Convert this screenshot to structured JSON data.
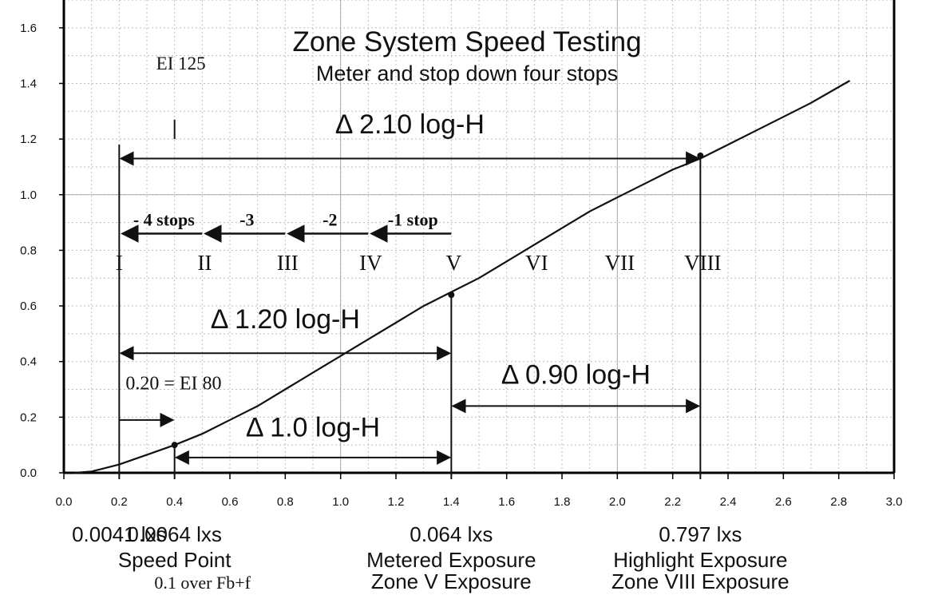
{
  "chart_data": {
    "type": "line",
    "title": "Zone System Speed Testing",
    "subtitle": "Meter and stop down four stops",
    "xlabel": "",
    "ylabel": "",
    "xlim": [
      0.0,
      3.0
    ],
    "ylim": [
      0.0,
      1.7
    ],
    "x_ticks": [
      0.0,
      0.2,
      0.4,
      0.6,
      0.8,
      1.0,
      1.2,
      1.4,
      1.6,
      1.8,
      2.0,
      2.2,
      2.4,
      2.6,
      2.8,
      3.0
    ],
    "x_tick_labels": [
      "0.0",
      "0.2",
      "0.4",
      "0.6",
      "0.8",
      "1.0",
      "1.2",
      "1.4",
      "1.6",
      "1.8",
      "2.0",
      "2.2",
      "2.4",
      "2.6",
      "2.8",
      "3.0"
    ],
    "y_ticks": [
      0.0,
      0.2,
      0.4,
      0.6,
      0.8,
      1.0,
      1.2,
      1.4,
      1.6
    ],
    "y_tick_labels": [
      "0.0",
      "0.2",
      "0.4",
      "0.6",
      "0.8",
      "1.0",
      "1.2",
      "1.4",
      "1.6"
    ],
    "grid": true,
    "curve": {
      "x": [
        0.04,
        0.1,
        0.2,
        0.3,
        0.4,
        0.5,
        0.6,
        0.7,
        0.8,
        0.9,
        1.0,
        1.1,
        1.2,
        1.3,
        1.4,
        1.5,
        1.6,
        1.7,
        1.8,
        1.9,
        2.0,
        2.1,
        2.2,
        2.3,
        2.4,
        2.5,
        2.6,
        2.7,
        2.84
      ],
      "y": [
        0.0,
        0.005,
        0.03,
        0.065,
        0.1,
        0.14,
        0.19,
        0.24,
        0.3,
        0.36,
        0.42,
        0.48,
        0.54,
        0.6,
        0.65,
        0.7,
        0.76,
        0.82,
        0.88,
        0.94,
        0.99,
        1.04,
        1.09,
        1.13,
        1.18,
        1.23,
        1.28,
        1.33,
        1.41
      ]
    },
    "points": [
      {
        "x": 0.4,
        "y": 0.1
      },
      {
        "x": 1.4,
        "y": 0.64
      },
      {
        "x": 2.3,
        "y": 1.14
      }
    ],
    "zones": [
      {
        "label": "I",
        "x": 0.2
      },
      {
        "label": "II",
        "x": 0.5
      },
      {
        "label": "III",
        "x": 0.8
      },
      {
        "label": "IV",
        "x": 1.1
      },
      {
        "label": "V",
        "x": 1.4
      },
      {
        "label": "VI",
        "x": 1.7
      },
      {
        "label": "VII",
        "x": 2.0
      },
      {
        "label": "VIII",
        "x": 2.3
      }
    ],
    "zone_label_y": 0.73,
    "stop_arrows": [
      {
        "label": "-1 stop",
        "x_from": 1.4,
        "x_to": 1.1
      },
      {
        "label": "-2",
        "x_from": 1.1,
        "x_to": 0.8
      },
      {
        "label": "-3",
        "x_from": 0.8,
        "x_to": 0.5
      },
      {
        "label": "- 4 stops",
        "x_from": 0.5,
        "x_to": 0.2
      }
    ],
    "stop_arrow_y": 0.86,
    "spans": [
      {
        "label": "Δ 2.10 log-H",
        "x1": 0.2,
        "x2": 2.3,
        "y": 1.13,
        "label_y": 1.22
      },
      {
        "label": "Δ 1.20 log-H",
        "x1": 0.2,
        "x2": 1.4,
        "y": 0.43,
        "label_y": 0.52
      },
      {
        "label": "Δ 0.90 log-H",
        "x1": 1.4,
        "x2": 2.3,
        "y": 0.24,
        "label_y": 0.32
      },
      {
        "label": "Δ 1.0 log-H",
        "x1": 0.4,
        "x2": 1.4,
        "y": 0.055,
        "label_y": 0.13
      }
    ],
    "ei_offset": {
      "label": "0.20 = EI 80",
      "x1": 0.2,
      "x2": 0.4,
      "y": 0.19,
      "label_y": 0.3
    },
    "ei_125": {
      "label": "EI 125",
      "x": 0.4,
      "y_top": 1.2,
      "y_bottom": 1.27,
      "label_y": 1.45
    },
    "verticals": [
      {
        "x": 0.2,
        "y_top": 1.18
      },
      {
        "x": 0.4,
        "y_top": 0.1
      },
      {
        "x": 1.4,
        "y_top": 0.64
      },
      {
        "x": 2.3,
        "y_top": 1.14
      }
    ],
    "bottom_annotations": [
      {
        "x": 0.2,
        "lines": [
          "0.0041 lxs"
        ]
      },
      {
        "x": 0.4,
        "lines": [
          "0.0064 lxs",
          "Speed Point",
          "0.1 over Fb+f"
        ]
      },
      {
        "x": 1.4,
        "lines": [
          "0.064 lxs",
          "Metered Exposure",
          "Zone V Exposure"
        ]
      },
      {
        "x": 2.3,
        "lines": [
          "0.797 lxs",
          "Highlight Exposure",
          "Zone VIII Exposure"
        ]
      }
    ],
    "colors": {
      "curve": "#111111",
      "grid": "#bbbbbb",
      "axis": "#000000",
      "annotation": "#111111"
    }
  }
}
